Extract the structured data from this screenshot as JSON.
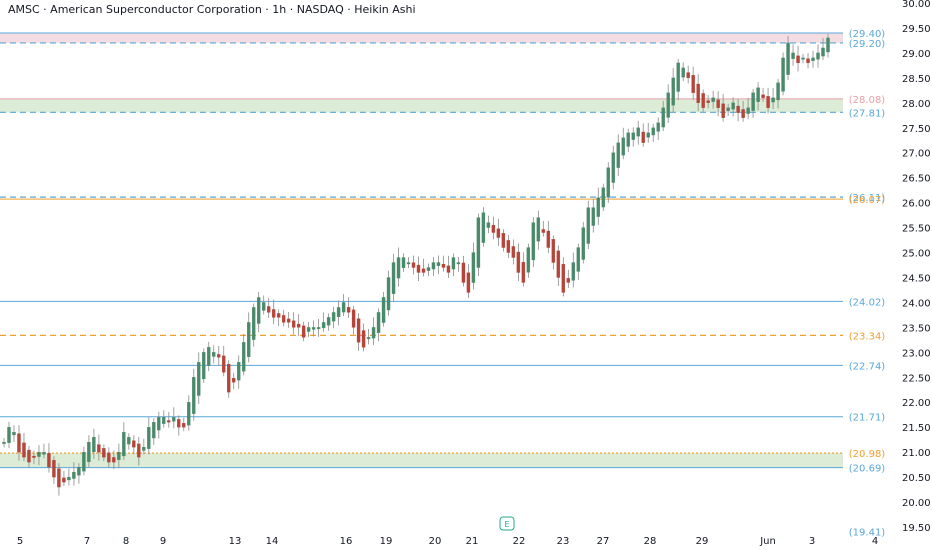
{
  "header": {
    "title": "AMSC · American Superconductor Corporation · 1h · NASDAQ · Heikin Ashi"
  },
  "marker": {
    "label": "E"
  },
  "colors": {
    "up": "#4a8a6a",
    "down": "#b5443a",
    "resistance_zone": "#f3dde3",
    "support_zone": "#dcecd6",
    "level_blue": "#5aa7d8",
    "level_orange": "#f0a030",
    "label_pink": "#e8a0a8"
  },
  "chart_data": {
    "type": "candlestick",
    "title": "AMSC · American Superconductor Corporation · 1h · NASDAQ · Heikin Ashi",
    "ylim": [
      19.4,
      30.0
    ],
    "y_ticks": [
      19.5,
      20.0,
      20.5,
      21.0,
      21.5,
      22.0,
      22.5,
      23.0,
      23.5,
      24.0,
      24.5,
      25.0,
      25.5,
      26.0,
      26.5,
      27.0,
      27.5,
      28.0,
      28.5,
      29.0,
      29.5,
      30.0
    ],
    "x_ticks": [
      "5",
      "7",
      "8",
      "9",
      "13",
      "14",
      "16",
      "19",
      "20",
      "21",
      "22",
      "23",
      "27",
      "28",
      "29",
      "Jun",
      "3",
      "4"
    ],
    "zones": [
      {
        "from": 29.2,
        "to": 29.4,
        "kind": "resistance"
      },
      {
        "from": 27.81,
        "to": 28.08,
        "kind": "support"
      },
      {
        "from": 20.69,
        "to": 20.98,
        "kind": "support"
      }
    ],
    "levels": [
      {
        "value": 29.4,
        "label": "(29.40)",
        "color": "#5aa7d8",
        "style": "solid"
      },
      {
        "value": 29.2,
        "label": "(29.20)",
        "color": "#5aa7d8",
        "style": "dashed"
      },
      {
        "value": 28.08,
        "label": "(28.08)",
        "color": "#e8a0a8",
        "style": "solid"
      },
      {
        "value": 27.81,
        "label": "(27.81)",
        "color": "#5aa7d8",
        "style": "dashed"
      },
      {
        "value": 26.11,
        "label": "(26.11)",
        "color": "#5aa7d8",
        "style": "dashed"
      },
      {
        "value": 26.07,
        "label": "(26.07)",
        "color": "#f0a030",
        "style": "solid"
      },
      {
        "value": 24.02,
        "label": "(24.02)",
        "color": "#5aa7d8",
        "style": "solid"
      },
      {
        "value": 23.34,
        "label": "(23.34)",
        "color": "#f0a030",
        "style": "dashed"
      },
      {
        "value": 22.74,
        "label": "(22.74)",
        "color": "#5aa7d8",
        "style": "solid"
      },
      {
        "value": 21.71,
        "label": "(21.71)",
        "color": "#5aa7d8",
        "style": "solid"
      },
      {
        "value": 20.98,
        "label": "(20.98)",
        "color": "#f0a030",
        "style": "dotted"
      },
      {
        "value": 20.69,
        "label": "(20.69)",
        "color": "#5aa7d8",
        "style": "solid"
      },
      {
        "value": 19.41,
        "label": "(19.41)",
        "color": "#5aa7d8",
        "style": "none"
      }
    ],
    "closes": [
      21.2,
      21.5,
      21.4,
      21.0,
      20.9,
      20.8,
      20.9,
      21.0,
      21.0,
      20.7,
      20.5,
      20.3,
      20.4,
      20.5,
      20.6,
      20.7,
      21.0,
      21.2,
      21.3,
      21.0,
      20.9,
      20.8,
      20.8,
      21.0,
      21.4,
      21.3,
      21.1,
      20.9,
      21.1,
      21.5,
      21.6,
      21.7,
      21.7,
      21.6,
      21.7,
      21.5,
      21.5,
      22.0,
      22.5,
      22.8,
      23.0,
      23.1,
      23.0,
      22.9,
      22.6,
      22.2,
      22.4,
      22.8,
      23.2,
      23.6,
      23.9,
      24.1,
      24.0,
      23.8,
      23.7,
      23.7,
      23.6,
      23.6,
      23.5,
      23.5,
      23.3,
      23.5,
      23.5,
      23.5,
      23.6,
      23.7,
      23.8,
      23.9,
      24.0,
      23.8,
      23.5,
      23.2,
      23.1,
      23.3,
      23.5,
      23.8,
      24.1,
      24.5,
      24.8,
      24.9,
      24.9,
      24.8,
      24.7,
      24.6,
      24.6,
      24.7,
      24.8,
      24.8,
      24.7,
      24.6,
      24.9,
      24.8,
      24.4,
      24.2,
      25.0,
      25.7,
      25.8,
      25.6,
      25.4,
      25.3,
      25.1,
      25.0,
      24.9,
      24.6,
      24.4,
      25.1,
      25.6,
      25.7,
      25.4,
      25.1,
      24.8,
      24.5,
      24.2,
      24.4,
      24.8,
      25.1,
      25.5,
      25.9,
      25.9,
      26.1,
      26.3,
      26.7,
      27.0,
      27.2,
      27.3,
      27.4,
      27.4,
      27.5,
      27.2,
      27.4,
      27.5,
      27.6,
      27.9,
      28.2,
      28.5,
      28.8,
      28.7,
      28.5,
      28.2,
      28.0,
      27.9,
      28.0,
      28.1,
      27.9,
      27.7,
      27.9,
      28.0,
      27.8,
      27.7,
      27.9,
      28.2,
      28.3,
      28.1,
      27.9,
      28.1,
      28.4,
      28.9,
      29.2,
      29.0,
      28.8,
      28.9,
      28.8,
      28.9,
      29.0,
      29.1,
      29.3
    ]
  }
}
